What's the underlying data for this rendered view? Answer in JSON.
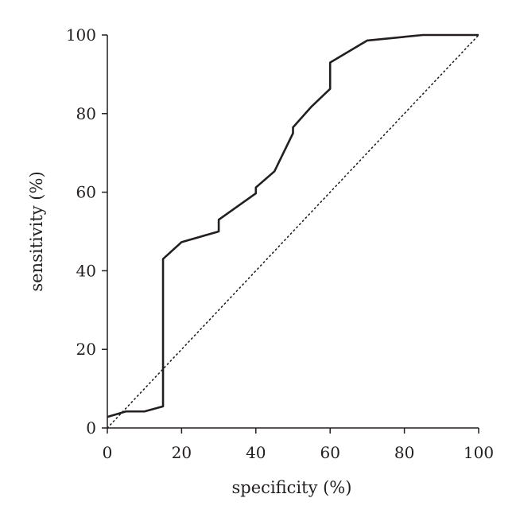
{
  "chart_data": {
    "type": "line",
    "xlabel": "specificity (%)",
    "ylabel": "sensitivity (%)",
    "xlim": [
      0,
      100
    ],
    "ylim": [
      0,
      100
    ],
    "x_ticks": [
      0,
      20,
      40,
      60,
      80,
      100
    ],
    "y_ticks": [
      0,
      20,
      40,
      60,
      80,
      100
    ],
    "x_tick_labels": [
      "0",
      "20",
      "40",
      "60",
      "80",
      "100"
    ],
    "y_tick_labels": [
      "0",
      "20",
      "40",
      "60",
      "80",
      "100"
    ],
    "grid": false,
    "series": [
      {
        "style": "solid",
        "color": "#231f20",
        "x": [
          0,
          5,
          10,
          15,
          15,
          20,
          30,
          30,
          40,
          40,
          45,
          50,
          50,
          55,
          60,
          60,
          70,
          85,
          100
        ],
        "y": [
          2.8,
          4.2,
          4.2,
          5.5,
          43,
          47.3,
          50,
          53,
          59.7,
          61.2,
          65.3,
          75,
          76.5,
          81.8,
          86.3,
          93,
          98.6,
          100,
          100
        ]
      },
      {
        "style": "dotted",
        "color": "#231f20",
        "x": [
          0,
          100
        ],
        "y": [
          0,
          100
        ]
      }
    ]
  }
}
